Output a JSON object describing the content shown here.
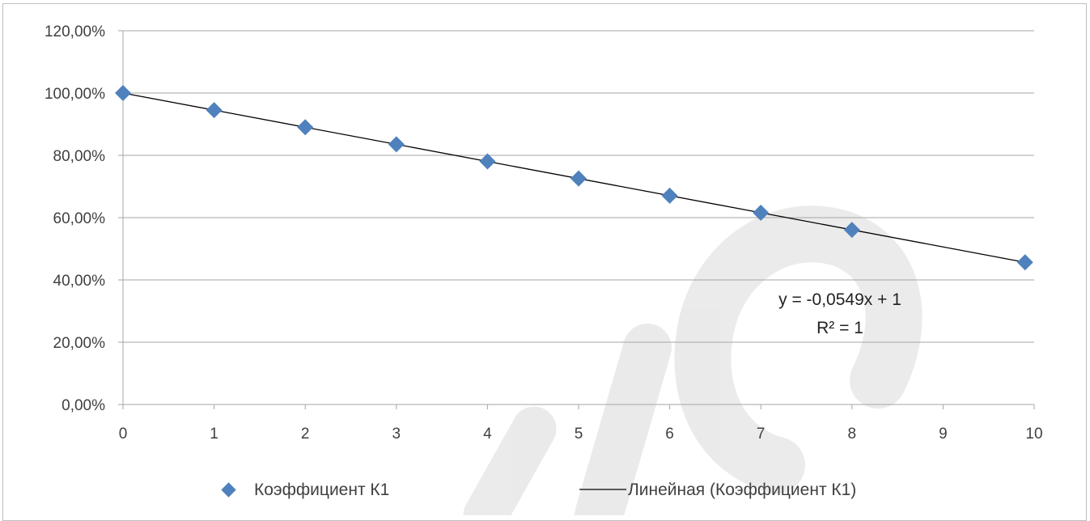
{
  "chart_data": {
    "type": "scatter",
    "title": "",
    "xlabel": "",
    "ylabel": "",
    "xlim": [
      0,
      10
    ],
    "ylim": [
      0,
      1.2
    ],
    "x_ticks": [
      0,
      1,
      2,
      3,
      4,
      5,
      6,
      7,
      8,
      9,
      10
    ],
    "x_tick_labels": [
      "0",
      "1",
      "2",
      "3",
      "4",
      "5",
      "6",
      "7",
      "8",
      "9",
      "10"
    ],
    "y_ticks": [
      0,
      0.2,
      0.4,
      0.6,
      0.8,
      1.0,
      1.2
    ],
    "y_tick_labels": [
      "0,00%",
      "20,00%",
      "40,00%",
      "60,00%",
      "80,00%",
      "100,00%",
      "120,00%"
    ],
    "grid": {
      "horizontal": true,
      "vertical": false
    },
    "legend_position": "bottom",
    "series": [
      {
        "name": "Коэффициент К1",
        "marker": "diamond",
        "color": "#4f81bd",
        "x": [
          0,
          1,
          2,
          3,
          4,
          5,
          6,
          7,
          8,
          9.9
        ],
        "y": [
          1.0,
          0.9451,
          0.8902,
          0.8353,
          0.7804,
          0.7255,
          0.6706,
          0.6157,
          0.5608,
          0.4565
        ]
      }
    ],
    "trendline": {
      "name": "Линейная (Коэффициент К1)",
      "color": "#000000",
      "slope": -0.0549,
      "intercept": 1,
      "x_range": [
        0,
        9.9
      ],
      "equation_label": "y = -0,0549x + 1",
      "r2_label": "R² = 1"
    }
  }
}
